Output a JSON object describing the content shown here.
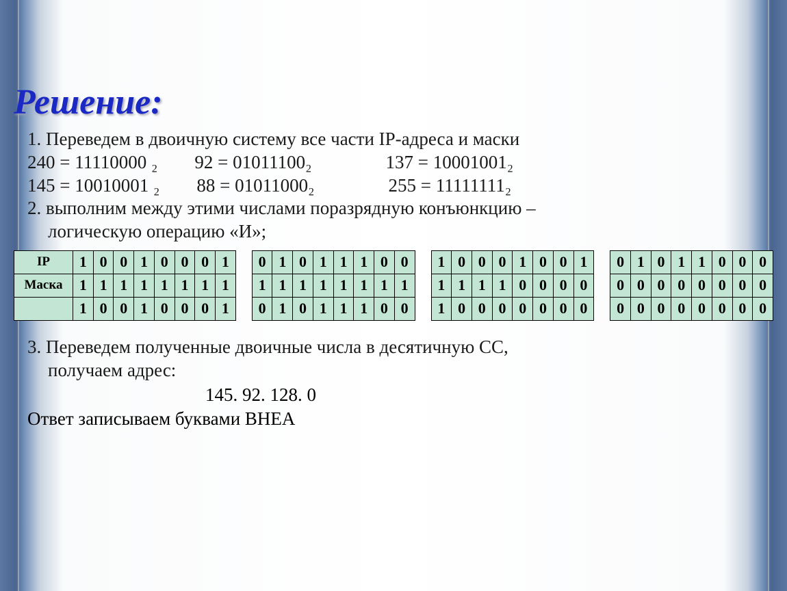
{
  "title": "Решение:",
  "step1": "1.   Переведем в двоичную систему все части IP-адреса и маски",
  "conversions": {
    "line1": "240 = 11110000 ₂        92 = 01011100₂                137 = 10001001₂",
    "line2": "145 = 10010001 ₂        88 = 01011000₂                255 = 11111111₂"
  },
  "step2a": "2.   выполним между этими числами поразрядную конъюнкцию –",
  "step2b": "логическую операцию «И»;",
  "table": {
    "row_labels": [
      "IP",
      "Маска",
      ""
    ],
    "cell_bg": "#c3e6d4",
    "border_color": "#000000",
    "rows": [
      [
        "1",
        "0",
        "0",
        "1",
        "0",
        "0",
        "0",
        "1",
        "0",
        "1",
        "0",
        "1",
        "1",
        "1",
        "0",
        "0",
        "1",
        "0",
        "0",
        "0",
        "1",
        "0",
        "0",
        "1",
        "0",
        "1",
        "0",
        "1",
        "1",
        "0",
        "0",
        "0"
      ],
      [
        "1",
        "1",
        "1",
        "1",
        "1",
        "1",
        "1",
        "1",
        "1",
        "1",
        "1",
        "1",
        "1",
        "1",
        "1",
        "1",
        "1",
        "1",
        "1",
        "1",
        "0",
        "0",
        "0",
        "0",
        "0",
        "0",
        "0",
        "0",
        "0",
        "0",
        "0",
        "0"
      ],
      [
        "1",
        "0",
        "0",
        "1",
        "0",
        "0",
        "0",
        "1",
        "0",
        "1",
        "0",
        "1",
        "1",
        "1",
        "0",
        "0",
        "1",
        "0",
        "0",
        "0",
        "0",
        "0",
        "0",
        "0",
        "0",
        "0",
        "0",
        "0",
        "0",
        "0",
        "0",
        "0"
      ]
    ]
  },
  "step3a": "3.   Переведем полученные двоичные числа в десятичную СС,",
  "step3b": "получаем адрес:",
  "result_ip": "145. 92. 128. 0",
  "answer": "Ответ записываем буквами ВНЕА"
}
